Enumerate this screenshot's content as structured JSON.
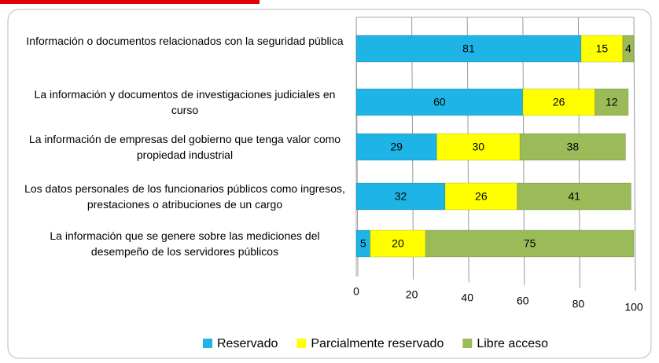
{
  "chart_data": {
    "type": "bar",
    "orientation": "horizontal",
    "stacked": true,
    "categories": [
      "Información o documentos relacionados con la seguridad pública",
      "La información y documentos de investigaciones judiciales en curso",
      "La información de empresas del gobierno que tenga valor como propiedad industrial",
      "Los datos personales de los funcionarios públicos como ingresos, prestaciones o atribuciones de un cargo",
      "La información que se genere sobre las mediciones del desempeño de los servidores públicos"
    ],
    "series": [
      {
        "name": "Reservado",
        "color": "#1fb4e6",
        "values": [
          81,
          60,
          29,
          32,
          5
        ]
      },
      {
        "name": "Parcialmente reservado",
        "color": "#ffff00",
        "values": [
          15,
          26,
          30,
          26,
          20
        ]
      },
      {
        "name": "Libre acceso",
        "color": "#9bbb59",
        "values": [
          4,
          12,
          38,
          41,
          75
        ]
      }
    ],
    "xlim": [
      0,
      100
    ],
    "xticks": [
      0,
      20,
      40,
      60,
      80,
      100
    ],
    "grid": true,
    "legend": "bottom"
  }
}
